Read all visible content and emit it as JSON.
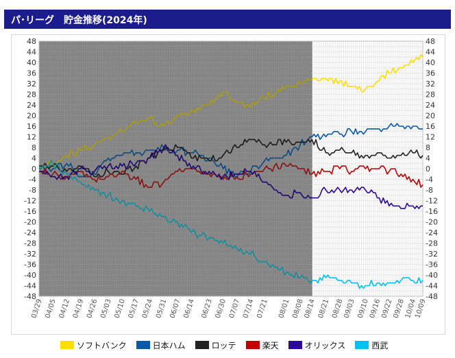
{
  "title": "パ･リーグ　貯金推移(2024年)",
  "chart_data": {
    "type": "line",
    "title": "パ･リーグ　貯金推移(2024年)",
    "xlabel": "",
    "ylabel": "",
    "ylim": [
      -48,
      48
    ],
    "y_ticks": [
      48,
      44,
      40,
      36,
      32,
      28,
      24,
      20,
      16,
      12,
      8,
      4,
      0,
      -4,
      -8,
      -12,
      -16,
      -20,
      -24,
      -28,
      -32,
      -36,
      -40,
      -44,
      -48
    ],
    "x_ticks": [
      "03/29",
      "04/05",
      "04/12",
      "04/19",
      "04/26",
      "05/03",
      "05/10",
      "05/17",
      "05/24",
      "05/31",
      "06/07",
      "06/14",
      "06/23",
      "06/30",
      "07/07",
      "07/14",
      "07/21",
      "08/01",
      "08/08",
      "08/14",
      "08/21",
      "08/28",
      "09/03",
      "09/10",
      "09/16",
      "09/22",
      "09/28",
      "10/04",
      "10/09"
    ],
    "x_tick_day": [
      0,
      7,
      14,
      21,
      28,
      35,
      42,
      49,
      56,
      63,
      70,
      77,
      86,
      93,
      100,
      107,
      114,
      125,
      132,
      138,
      145,
      152,
      158,
      165,
      171,
      177,
      183,
      189,
      194
    ],
    "shaded_until_day": 138,
    "grid": true,
    "legend_position": "bottom",
    "series": [
      {
        "name": "ソフトバンク",
        "color": "#ffdd00",
        "shaded_color": "#aa9c10",
        "points": [
          [
            0,
            1
          ],
          [
            7,
            2
          ],
          [
            14,
            5
          ],
          [
            21,
            7
          ],
          [
            28,
            9
          ],
          [
            35,
            12
          ],
          [
            42,
            14
          ],
          [
            49,
            17
          ],
          [
            56,
            19
          ],
          [
            63,
            16
          ],
          [
            70,
            20
          ],
          [
            77,
            22
          ],
          [
            86,
            24
          ],
          [
            93,
            29
          ],
          [
            100,
            25
          ],
          [
            107,
            23
          ],
          [
            114,
            27
          ],
          [
            125,
            31
          ],
          [
            132,
            32
          ],
          [
            138,
            34
          ],
          [
            145,
            34
          ],
          [
            152,
            33
          ],
          [
            158,
            31
          ],
          [
            165,
            30
          ],
          [
            171,
            33
          ],
          [
            177,
            36
          ],
          [
            183,
            38
          ],
          [
            189,
            40
          ],
          [
            194,
            42
          ]
        ]
      },
      {
        "name": "日本ハム",
        "color": "#0a58a8",
        "shaded_color": "#0a4a82",
        "points": [
          [
            0,
            0
          ],
          [
            7,
            0
          ],
          [
            14,
            2
          ],
          [
            21,
            -3
          ],
          [
            28,
            -2
          ],
          [
            35,
            4
          ],
          [
            42,
            5
          ],
          [
            49,
            6
          ],
          [
            56,
            7
          ],
          [
            63,
            8
          ],
          [
            70,
            7
          ],
          [
            77,
            6
          ],
          [
            86,
            4
          ],
          [
            93,
            0
          ],
          [
            100,
            -3
          ],
          [
            107,
            -1
          ],
          [
            114,
            3
          ],
          [
            125,
            5
          ],
          [
            132,
            9
          ],
          [
            138,
            12
          ],
          [
            145,
            12
          ],
          [
            152,
            13
          ],
          [
            158,
            14
          ],
          [
            165,
            14
          ],
          [
            171,
            15
          ],
          [
            177,
            16
          ],
          [
            183,
            16
          ],
          [
            189,
            16
          ],
          [
            194,
            15
          ]
        ]
      },
      {
        "name": "ロッテ",
        "color": "#222222",
        "shaded_color": "#1a1a1a",
        "points": [
          [
            0,
            1
          ],
          [
            7,
            1
          ],
          [
            14,
            -1
          ],
          [
            21,
            1
          ],
          [
            28,
            -3
          ],
          [
            35,
            -1
          ],
          [
            42,
            -2
          ],
          [
            49,
            1
          ],
          [
            56,
            4
          ],
          [
            63,
            7
          ],
          [
            70,
            8
          ],
          [
            77,
            4
          ],
          [
            86,
            3
          ],
          [
            93,
            5
          ],
          [
            100,
            8
          ],
          [
            107,
            11
          ],
          [
            114,
            9
          ],
          [
            125,
            10
          ],
          [
            132,
            10
          ],
          [
            138,
            11
          ],
          [
            145,
            6
          ],
          [
            152,
            7
          ],
          [
            158,
            6
          ],
          [
            165,
            5
          ],
          [
            171,
            6
          ],
          [
            177,
            4
          ],
          [
            183,
            5
          ],
          [
            189,
            6
          ],
          [
            194,
            5
          ]
        ]
      },
      {
        "name": "楽天",
        "color": "#c00000",
        "shaded_color": "#8a1010",
        "points": [
          [
            0,
            -1
          ],
          [
            7,
            -2
          ],
          [
            14,
            -3
          ],
          [
            21,
            -1
          ],
          [
            28,
            -4
          ],
          [
            35,
            -3
          ],
          [
            42,
            -1
          ],
          [
            49,
            -4
          ],
          [
            56,
            -7
          ],
          [
            63,
            -5
          ],
          [
            70,
            -1
          ],
          [
            77,
            0
          ],
          [
            86,
            -2
          ],
          [
            93,
            -4
          ],
          [
            100,
            -3
          ],
          [
            107,
            -2
          ],
          [
            114,
            0
          ],
          [
            125,
            1
          ],
          [
            132,
            0
          ],
          [
            138,
            -2
          ],
          [
            145,
            -1
          ],
          [
            152,
            0
          ],
          [
            158,
            -1
          ],
          [
            165,
            0
          ],
          [
            171,
            0
          ],
          [
            177,
            -1
          ],
          [
            183,
            -2
          ],
          [
            189,
            -4
          ],
          [
            194,
            -6
          ]
        ]
      },
      {
        "name": "オリックス",
        "color": "#2c0896",
        "shaded_color": "#220770",
        "points": [
          [
            0,
            -1
          ],
          [
            7,
            -3
          ],
          [
            14,
            -3
          ],
          [
            21,
            0
          ],
          [
            28,
            -1
          ],
          [
            35,
            1
          ],
          [
            42,
            1
          ],
          [
            49,
            2
          ],
          [
            56,
            4
          ],
          [
            63,
            8
          ],
          [
            70,
            5
          ],
          [
            77,
            0
          ],
          [
            86,
            -1
          ],
          [
            93,
            -3
          ],
          [
            100,
            -2
          ],
          [
            107,
            -1
          ],
          [
            114,
            -5
          ],
          [
            125,
            -10
          ],
          [
            132,
            -9
          ],
          [
            138,
            -11
          ],
          [
            145,
            -8
          ],
          [
            152,
            -8
          ],
          [
            158,
            -8
          ],
          [
            165,
            -8
          ],
          [
            171,
            -11
          ],
          [
            177,
            -14
          ],
          [
            183,
            -15
          ],
          [
            189,
            -14
          ],
          [
            194,
            -14
          ]
        ]
      },
      {
        "name": "西武",
        "color": "#00c0f0",
        "shaded_color": "#128e9c",
        "points": [
          [
            0,
            1
          ],
          [
            7,
            2
          ],
          [
            14,
            -2
          ],
          [
            21,
            -5
          ],
          [
            28,
            -8
          ],
          [
            35,
            -10
          ],
          [
            42,
            -12
          ],
          [
            49,
            -14
          ],
          [
            56,
            -16
          ],
          [
            63,
            -18
          ],
          [
            70,
            -20
          ],
          [
            77,
            -24
          ],
          [
            86,
            -26
          ],
          [
            93,
            -28
          ],
          [
            100,
            -30
          ],
          [
            107,
            -32
          ],
          [
            114,
            -35
          ],
          [
            125,
            -39
          ],
          [
            132,
            -41
          ],
          [
            138,
            -42
          ],
          [
            145,
            -41
          ],
          [
            152,
            -42
          ],
          [
            158,
            -43
          ],
          [
            165,
            -44
          ],
          [
            171,
            -43
          ],
          [
            177,
            -43
          ],
          [
            183,
            -42
          ],
          [
            189,
            -42
          ],
          [
            194,
            -42
          ]
        ]
      }
    ]
  }
}
